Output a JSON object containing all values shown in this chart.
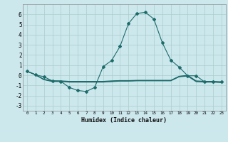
{
  "xlabel": "Humidex (Indice chaleur)",
  "xlim": [
    -0.5,
    23.5
  ],
  "ylim": [
    -3.5,
    7.0
  ],
  "yticks": [
    -3,
    -2,
    -1,
    0,
    1,
    2,
    3,
    4,
    5,
    6
  ],
  "xticks": [
    0,
    1,
    2,
    3,
    4,
    5,
    6,
    7,
    8,
    9,
    10,
    11,
    12,
    13,
    14,
    15,
    16,
    17,
    18,
    19,
    20,
    21,
    22,
    23
  ],
  "bg_color": "#cce8ed",
  "grid_color": "#aacccc",
  "line_color": "#1e6b6b",
  "line1_x": [
    0,
    1,
    2,
    3,
    4,
    5,
    6,
    7,
    8,
    9,
    10,
    11,
    12,
    13,
    14,
    15,
    16,
    17,
    18,
    19,
    20,
    21,
    22,
    23
  ],
  "line1_y": [
    0.4,
    0.05,
    -0.15,
    -0.55,
    -0.6,
    -1.2,
    -1.5,
    -1.6,
    -1.2,
    0.85,
    1.45,
    2.85,
    5.1,
    6.1,
    6.2,
    5.55,
    3.2,
    1.5,
    0.8,
    -0.05,
    -0.05,
    -0.65,
    -0.65,
    -0.65
  ],
  "line2_x": [
    0,
    1,
    2,
    3,
    4,
    5,
    6,
    7,
    8,
    9,
    10,
    11,
    12,
    13,
    14,
    15,
    16,
    17,
    18,
    19,
    20,
    21,
    22,
    23
  ],
  "line2_y": [
    0.4,
    0.05,
    -0.4,
    -0.55,
    -0.55,
    -0.6,
    -0.6,
    -0.6,
    -0.6,
    -0.6,
    -0.55,
    -0.52,
    -0.52,
    -0.5,
    -0.5,
    -0.5,
    -0.5,
    -0.5,
    -0.1,
    0.0,
    -0.55,
    -0.6,
    -0.6,
    -0.65
  ],
  "line3_x": [
    0,
    1,
    2,
    3,
    4,
    5,
    6,
    7,
    8,
    9,
    10,
    11,
    12,
    13,
    14,
    15,
    16,
    17,
    18,
    19,
    20,
    21,
    22,
    23
  ],
  "line3_y": [
    0.4,
    0.05,
    -0.42,
    -0.58,
    -0.58,
    -0.65,
    -0.65,
    -0.65,
    -0.65,
    -0.65,
    -0.6,
    -0.55,
    -0.55,
    -0.52,
    -0.52,
    -0.52,
    -0.52,
    -0.52,
    -0.12,
    -0.05,
    -0.6,
    -0.65,
    -0.65,
    -0.68
  ],
  "line4_x": [
    0,
    1,
    2,
    3,
    4,
    5,
    6,
    7,
    8,
    9,
    10,
    11,
    12,
    13,
    14,
    15,
    16,
    17,
    18,
    19,
    20,
    21,
    22,
    23
  ],
  "line4_y": [
    0.4,
    0.05,
    -0.44,
    -0.62,
    -0.62,
    -0.68,
    -0.68,
    -0.68,
    -0.68,
    -0.68,
    -0.63,
    -0.58,
    -0.58,
    -0.55,
    -0.55,
    -0.55,
    -0.55,
    -0.55,
    -0.15,
    -0.08,
    -0.63,
    -0.68,
    -0.68,
    -0.72
  ],
  "markersize": 2.0,
  "linewidth": 0.8
}
